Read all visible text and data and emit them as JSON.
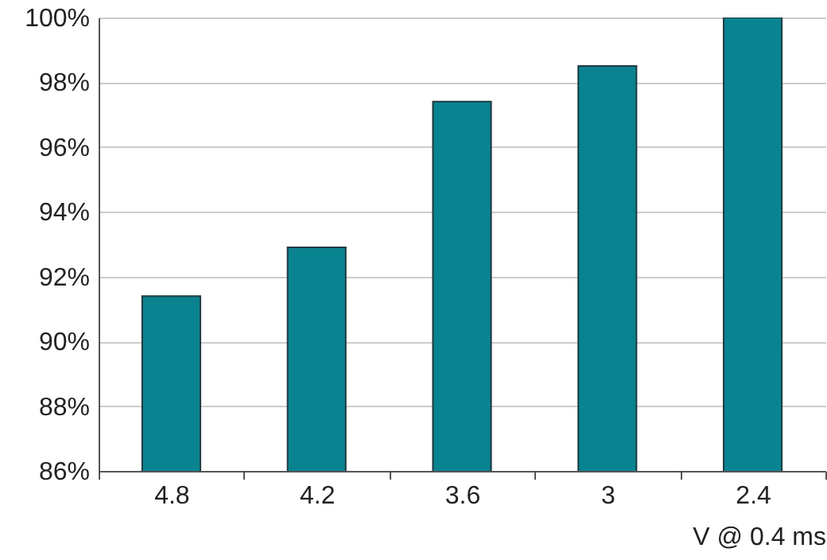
{
  "chart_data": {
    "type": "bar",
    "xlabel": "V @ 0.4 ms",
    "categories": [
      "4.8",
      "4.2",
      "3.6",
      "3",
      "2.4"
    ],
    "values": [
      91.4,
      92.9,
      97.4,
      98.5,
      100
    ],
    "color": "#0a8390",
    "ylim": [
      86,
      100
    ],
    "yticks": [
      {
        "value": 86,
        "label": "86%"
      },
      {
        "value": 88,
        "label": "88%"
      },
      {
        "value": 90,
        "label": "90%"
      },
      {
        "value": 92,
        "label": "92%"
      },
      {
        "value": 94,
        "label": "94%"
      },
      {
        "value": 96,
        "label": "96%"
      },
      {
        "value": 98,
        "label": "98%"
      },
      {
        "value": 100,
        "label": "100%"
      }
    ],
    "grid": "y"
  }
}
